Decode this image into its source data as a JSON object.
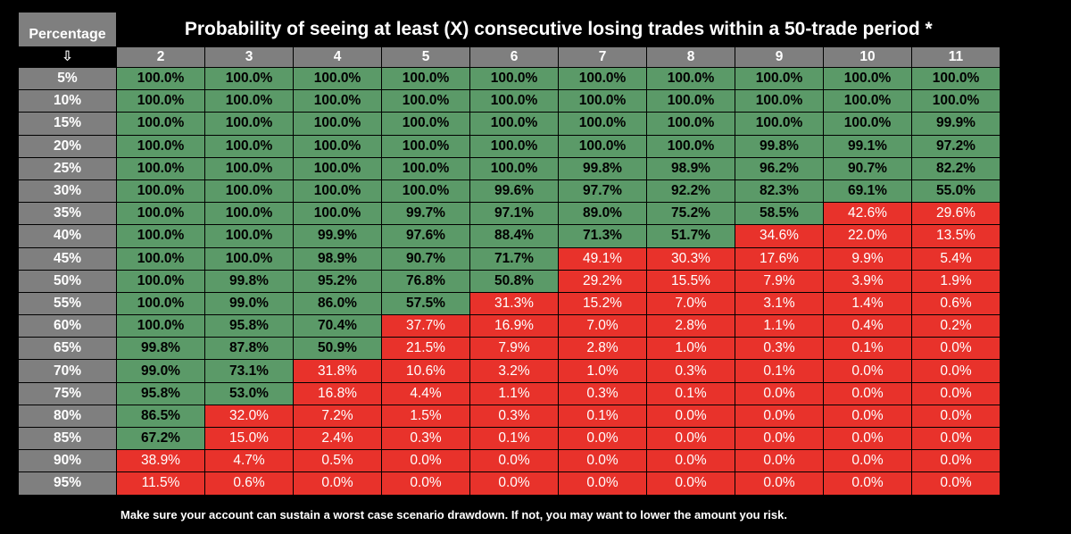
{
  "chart_data": {
    "type": "table",
    "title": "Probability of seeing at least (X) consecutive losing trades within a 50-trade period *",
    "corner_label": "Percentage",
    "down_arrow": "⇩",
    "columns": [
      "2",
      "3",
      "4",
      "5",
      "6",
      "7",
      "8",
      "9",
      "10",
      "11"
    ],
    "rows": [
      "5%",
      "10%",
      "15%",
      "20%",
      "25%",
      "30%",
      "35%",
      "40%",
      "45%",
      "50%",
      "55%",
      "60%",
      "65%",
      "70%",
      "75%",
      "80%",
      "85%",
      "90%",
      "95%"
    ],
    "values": [
      [
        "100.0%",
        "100.0%",
        "100.0%",
        "100.0%",
        "100.0%",
        "100.0%",
        "100.0%",
        "100.0%",
        "100.0%",
        "100.0%"
      ],
      [
        "100.0%",
        "100.0%",
        "100.0%",
        "100.0%",
        "100.0%",
        "100.0%",
        "100.0%",
        "100.0%",
        "100.0%",
        "100.0%"
      ],
      [
        "100.0%",
        "100.0%",
        "100.0%",
        "100.0%",
        "100.0%",
        "100.0%",
        "100.0%",
        "100.0%",
        "100.0%",
        "99.9%"
      ],
      [
        "100.0%",
        "100.0%",
        "100.0%",
        "100.0%",
        "100.0%",
        "100.0%",
        "100.0%",
        "99.8%",
        "99.1%",
        "97.2%"
      ],
      [
        "100.0%",
        "100.0%",
        "100.0%",
        "100.0%",
        "100.0%",
        "99.8%",
        "98.9%",
        "96.2%",
        "90.7%",
        "82.2%"
      ],
      [
        "100.0%",
        "100.0%",
        "100.0%",
        "100.0%",
        "99.6%",
        "97.7%",
        "92.2%",
        "82.3%",
        "69.1%",
        "55.0%"
      ],
      [
        "100.0%",
        "100.0%",
        "100.0%",
        "99.7%",
        "97.1%",
        "89.0%",
        "75.2%",
        "58.5%",
        "42.6%",
        "29.6%"
      ],
      [
        "100.0%",
        "100.0%",
        "99.9%",
        "97.6%",
        "88.4%",
        "71.3%",
        "51.7%",
        "34.6%",
        "22.0%",
        "13.5%"
      ],
      [
        "100.0%",
        "100.0%",
        "98.9%",
        "90.7%",
        "71.7%",
        "49.1%",
        "30.3%",
        "17.6%",
        "9.9%",
        "5.4%"
      ],
      [
        "100.0%",
        "99.8%",
        "95.2%",
        "76.8%",
        "50.8%",
        "29.2%",
        "15.5%",
        "7.9%",
        "3.9%",
        "1.9%"
      ],
      [
        "100.0%",
        "99.0%",
        "86.0%",
        "57.5%",
        "31.3%",
        "15.2%",
        "7.0%",
        "3.1%",
        "1.4%",
        "0.6%"
      ],
      [
        "100.0%",
        "95.8%",
        "70.4%",
        "37.7%",
        "16.9%",
        "7.0%",
        "2.8%",
        "1.1%",
        "0.4%",
        "0.2%"
      ],
      [
        "99.8%",
        "87.8%",
        "50.9%",
        "21.5%",
        "7.9%",
        "2.8%",
        "1.0%",
        "0.3%",
        "0.1%",
        "0.0%"
      ],
      [
        "99.0%",
        "73.1%",
        "31.8%",
        "10.6%",
        "3.2%",
        "1.0%",
        "0.3%",
        "0.1%",
        "0.0%",
        "0.0%"
      ],
      [
        "95.8%",
        "53.0%",
        "16.8%",
        "4.4%",
        "1.1%",
        "0.3%",
        "0.1%",
        "0.0%",
        "0.0%",
        "0.0%"
      ],
      [
        "86.5%",
        "32.0%",
        "7.2%",
        "1.5%",
        "0.3%",
        "0.1%",
        "0.0%",
        "0.0%",
        "0.0%",
        "0.0%"
      ],
      [
        "67.2%",
        "15.0%",
        "2.4%",
        "0.3%",
        "0.1%",
        "0.0%",
        "0.0%",
        "0.0%",
        "0.0%",
        "0.0%"
      ],
      [
        "38.9%",
        "4.7%",
        "0.5%",
        "0.0%",
        "0.0%",
        "0.0%",
        "0.0%",
        "0.0%",
        "0.0%",
        "0.0%"
      ],
      [
        "11.5%",
        "0.6%",
        "0.0%",
        "0.0%",
        "0.0%",
        "0.0%",
        "0.0%",
        "0.0%",
        "0.0%",
        "0.0%"
      ]
    ],
    "highlight_threshold_percent": 50,
    "colors": {
      "header_bg": "#7f7f7f",
      "high_bg": "#5b9a68",
      "low_bg": "#e8322b"
    }
  },
  "footnote": "Make sure your account can sustain a worst case scenario drawdown. If not, you may want to lower the amount you risk."
}
